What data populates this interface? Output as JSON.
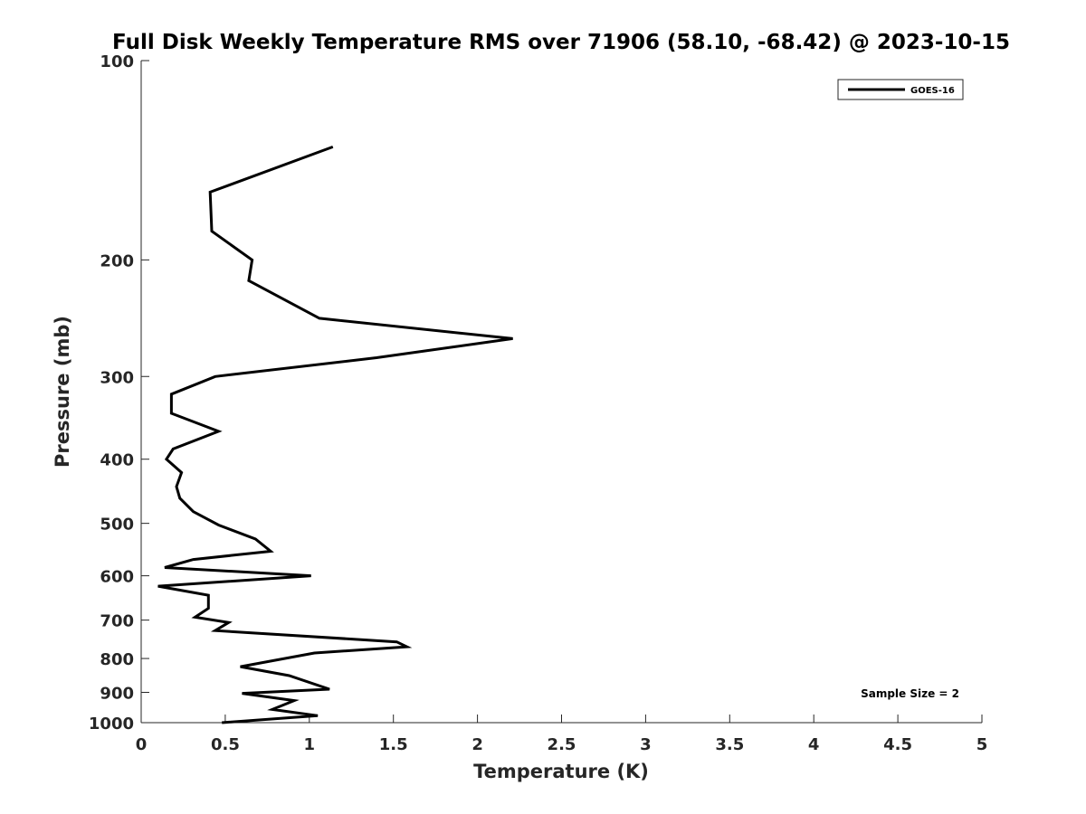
{
  "chart_data": {
    "type": "line",
    "title": "Full Disk Weekly Temperature RMS over 71906 (58.10, -68.42) @ 2023-10-15",
    "xlabel": "Temperature (K)",
    "ylabel": "Pressure (mb)",
    "xlim": [
      0,
      5
    ],
    "ylim": [
      100,
      1000
    ],
    "y_scale": "log",
    "y_reversed": true,
    "xticks": [
      "0",
      "0.5",
      "1",
      "1.5",
      "2",
      "2.5",
      "3",
      "3.5",
      "4",
      "4.5",
      "5"
    ],
    "yticks": [
      "100",
      "200",
      "300",
      "400",
      "500",
      "600",
      "700",
      "800",
      "900",
      "1000"
    ],
    "grid": false,
    "legend_position": "top-right",
    "annotation": "Sample Size = 2",
    "series": [
      {
        "name": "GOES-16",
        "color": "#000000",
        "points": [
          [
            1.14,
            135
          ],
          [
            0.41,
            158
          ],
          [
            0.42,
            181
          ],
          [
            0.66,
            200
          ],
          [
            0.64,
            215
          ],
          [
            1.06,
            245
          ],
          [
            2.21,
            263
          ],
          [
            1.4,
            281
          ],
          [
            0.44,
            300
          ],
          [
            0.18,
            319
          ],
          [
            0.18,
            341
          ],
          [
            0.46,
            363
          ],
          [
            0.19,
            386
          ],
          [
            0.15,
            400
          ],
          [
            0.24,
            419
          ],
          [
            0.21,
            440
          ],
          [
            0.23,
            458
          ],
          [
            0.31,
            480
          ],
          [
            0.46,
            503
          ],
          [
            0.68,
            528
          ],
          [
            0.77,
            551
          ],
          [
            0.31,
            567
          ],
          [
            0.14,
            583
          ],
          [
            1.01,
            600
          ],
          [
            0.1,
            622
          ],
          [
            0.4,
            642
          ],
          [
            0.4,
            672
          ],
          [
            0.32,
            693
          ],
          [
            0.52,
            706
          ],
          [
            0.44,
            726
          ],
          [
            1.52,
            755
          ],
          [
            1.58,
            768
          ],
          [
            1.03,
            785
          ],
          [
            0.59,
            823
          ],
          [
            0.88,
            849
          ],
          [
            1.12,
            890
          ],
          [
            0.6,
            903
          ],
          [
            0.91,
            926
          ],
          [
            0.78,
            955
          ],
          [
            1.05,
            976
          ],
          [
            0.48,
            1000
          ]
        ]
      }
    ]
  }
}
